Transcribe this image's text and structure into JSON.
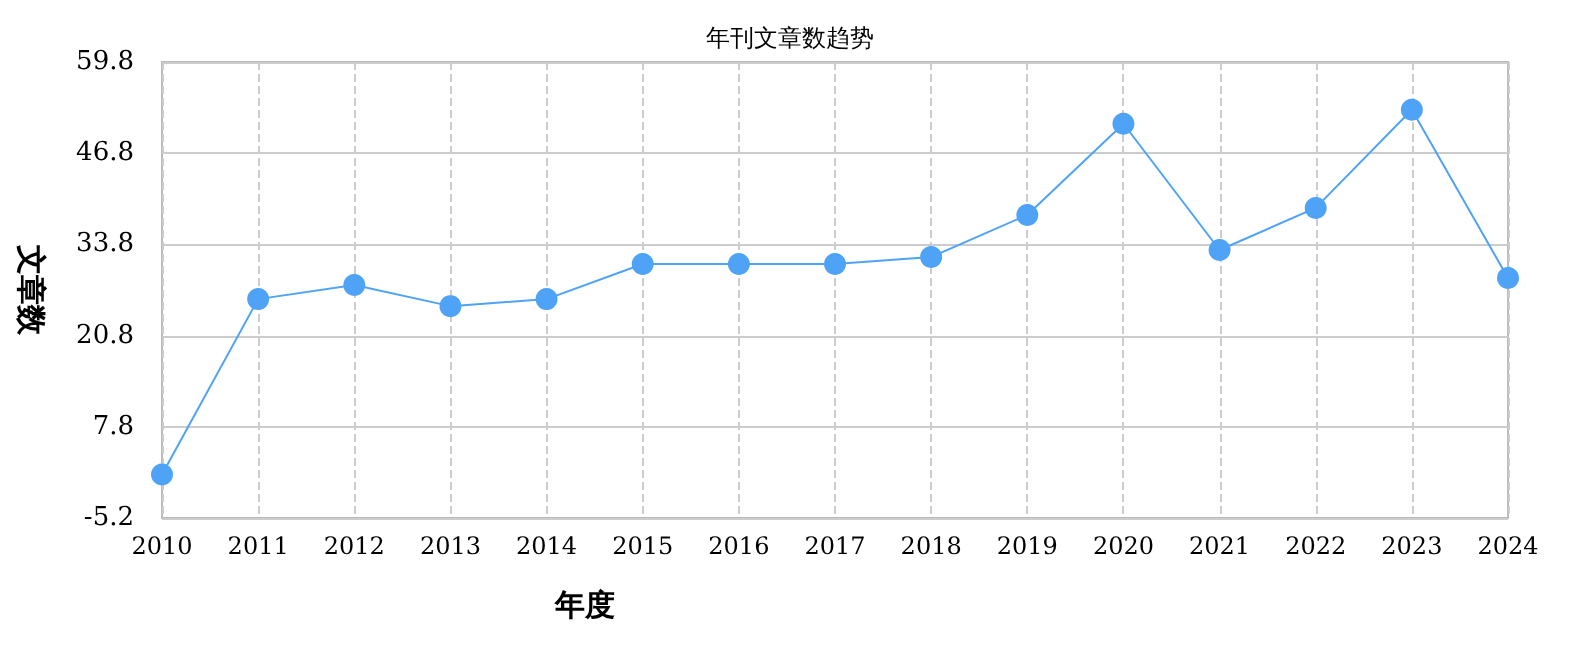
{
  "chart_data": {
    "type": "line",
    "title": "年刊文章数趋势",
    "xlabel": "年度",
    "ylabel": "文章数",
    "categories": [
      "2010",
      "2011",
      "2012",
      "2013",
      "2014",
      "2015",
      "2016",
      "2017",
      "2018",
      "2019",
      "2020",
      "2021",
      "2022",
      "2023",
      "2024"
    ],
    "series": [
      {
        "color": "#4fa3f7",
        "values": [
          1,
          26,
          28,
          25,
          26,
          31,
          31,
          31,
          32,
          38,
          51,
          33,
          39,
          53,
          29
        ]
      }
    ],
    "ylim": [
      -5.2,
      59.8
    ],
    "yticks": [
      -5.2,
      7.8,
      20.8,
      33.8,
      46.8,
      59.8
    ],
    "grid": true,
    "marker": "circle",
    "line_style": "solid"
  }
}
